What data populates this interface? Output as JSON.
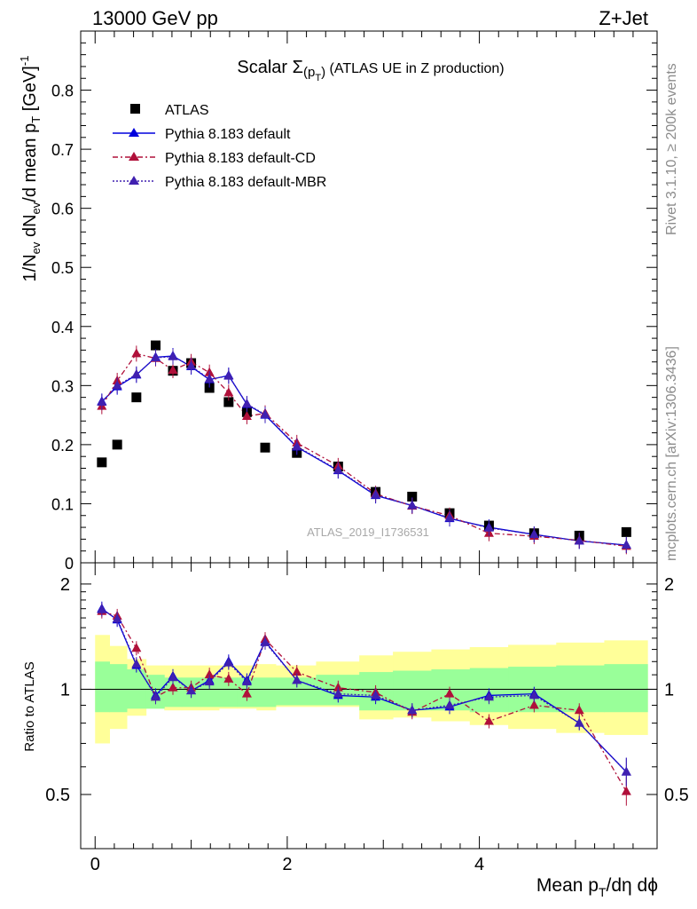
{
  "header": {
    "left": "13000 GeV pp",
    "right": "Z+Jet"
  },
  "side_labels": {
    "rivet": "Rivet 3.1.10, ≥ 200k events",
    "mcplots": "mcplots.cern.ch [arXiv:1306.3436]"
  },
  "chart_data": [
    {
      "type": "scatter",
      "panel": "main",
      "title_main": "Scalar Σ",
      "title_sub": "(p",
      "title_subsub": "T",
      "title_close": ")",
      "title_rest": " (ATLAS UE in Z production)",
      "watermark": "ATLAS_2019_I1736531",
      "ylabel": "1/N_ev dN_ev/d mean p_T [GeV]^-1",
      "ylim": [
        0,
        0.9
      ],
      "xlim": [
        -0.15,
        5.85
      ],
      "yticks": [
        "0",
        "0.1",
        "0.2",
        "0.3",
        "0.4",
        "0.5",
        "0.6",
        "0.7",
        "0.8"
      ],
      "ytick_values": [
        0,
        0.1,
        0.2,
        0.3,
        0.4,
        0.5,
        0.6,
        0.7,
        0.8
      ],
      "x": [
        0.07,
        0.23,
        0.43,
        0.63,
        0.81,
        1.0,
        1.19,
        1.39,
        1.58,
        1.77,
        2.1,
        2.53,
        2.92,
        3.3,
        3.69,
        4.1,
        4.57,
        5.04,
        5.53
      ],
      "legend": [
        "ATLAS",
        "Pythia 8.183 default",
        "Pythia 8.183 default-CD",
        "Pythia 8.183 default-MBR"
      ],
      "series": [
        {
          "name": "ATLAS",
          "color": "#000000",
          "marker": "square",
          "values": [
            0.17,
            0.2,
            0.28,
            0.368,
            0.325,
            0.338,
            0.296,
            0.272,
            0.255,
            0.195,
            0.186,
            0.163,
            0.12,
            0.112,
            0.084,
            0.063,
            0.05,
            0.046,
            0.052
          ]
        },
        {
          "name": "Pythia 8.183 default",
          "color": "#0000dd",
          "marker": "triangle",
          "dash": "",
          "values": [
            0.273,
            0.298,
            0.318,
            0.348,
            0.35,
            0.332,
            0.31,
            0.317,
            0.268,
            0.25,
            0.196,
            0.156,
            0.114,
            0.097,
            0.075,
            0.06,
            0.048,
            0.037,
            0.03
          ]
        },
        {
          "name": "Pythia 8.183 default-CD",
          "color": "#b0103a",
          "marker": "triangle",
          "dash": "6,3,2,3",
          "values": [
            0.265,
            0.308,
            0.354,
            0.346,
            0.326,
            0.34,
            0.322,
            0.288,
            0.248,
            0.253,
            0.203,
            0.164,
            0.117,
            0.096,
            0.08,
            0.05,
            0.045,
            0.038,
            0.028
          ]
        },
        {
          "name": "Pythia 8.183 default-MBR",
          "color": "#4020b0",
          "marker": "triangle",
          "dash": "2,2",
          "values": [
            0.272,
            0.3,
            0.319,
            0.347,
            0.349,
            0.333,
            0.311,
            0.316,
            0.269,
            0.251,
            0.197,
            0.157,
            0.115,
            0.097,
            0.076,
            0.059,
            0.048,
            0.037,
            0.03
          ]
        }
      ]
    },
    {
      "type": "line",
      "panel": "ratio",
      "ylabel": "Ratio to ATLAS",
      "ylim": [
        0.35,
        2.3
      ],
      "xlim": [
        -0.15,
        5.85
      ],
      "yticks": [
        "0.5",
        "1",
        "2"
      ],
      "ytick_values": [
        0.5,
        1,
        2
      ],
      "xticks": [
        "0",
        "2",
        "4"
      ],
      "xtick_values": [
        0,
        2,
        4
      ],
      "xlabel_main": "Mean p",
      "xlabel_sub": "T",
      "xlabel_rest": "/dη dϕ",
      "x": [
        0.07,
        0.23,
        0.43,
        0.63,
        0.81,
        1.0,
        1.19,
        1.39,
        1.58,
        1.77,
        2.1,
        2.53,
        2.92,
        3.3,
        3.69,
        4.1,
        4.57,
        5.04,
        5.53
      ],
      "bin_edges": [
        0,
        0.15,
        0.33,
        0.53,
        0.72,
        0.9,
        1.1,
        1.29,
        1.48,
        1.68,
        1.88,
        2.3,
        2.75,
        3.1,
        3.5,
        3.9,
        4.3,
        4.8,
        5.3,
        5.75
      ],
      "band_stat": [
        [
          0.86,
          1.2
        ],
        [
          0.86,
          1.18
        ],
        [
          0.88,
          1.14
        ],
        [
          0.88,
          1.1
        ],
        [
          0.89,
          1.08
        ],
        [
          0.89,
          1.08
        ],
        [
          0.89,
          1.08
        ],
        [
          0.89,
          1.08
        ],
        [
          0.89,
          1.08
        ],
        [
          0.89,
          1.08
        ],
        [
          0.9,
          1.08
        ],
        [
          0.9,
          1.1
        ],
        [
          0.87,
          1.12
        ],
        [
          0.87,
          1.13
        ],
        [
          0.87,
          1.14
        ],
        [
          0.86,
          1.15
        ],
        [
          0.86,
          1.16
        ],
        [
          0.86,
          1.17
        ],
        [
          0.86,
          1.18
        ]
      ],
      "band_syst": [
        [
          0.7,
          1.43
        ],
        [
          0.77,
          1.33
        ],
        [
          0.84,
          1.22
        ],
        [
          0.88,
          1.17
        ],
        [
          0.87,
          1.17
        ],
        [
          0.87,
          1.17
        ],
        [
          0.87,
          1.17
        ],
        [
          0.88,
          1.17
        ],
        [
          0.88,
          1.17
        ],
        [
          0.87,
          1.18
        ],
        [
          0.89,
          1.17
        ],
        [
          0.89,
          1.2
        ],
        [
          0.82,
          1.25
        ],
        [
          0.83,
          1.28
        ],
        [
          0.81,
          1.3
        ],
        [
          0.79,
          1.32
        ],
        [
          0.77,
          1.34
        ],
        [
          0.75,
          1.36
        ],
        [
          0.74,
          1.38
        ]
      ],
      "series": [
        {
          "name": "Pythia 8.183 default",
          "color": "#0000dd",
          "dash": "",
          "values": [
            1.7,
            1.58,
            1.17,
            0.96,
            1.09,
            0.99,
            1.06,
            1.2,
            1.06,
            1.37,
            1.06,
            0.96,
            0.95,
            0.87,
            0.89,
            0.96,
            0.97,
            0.8,
            0.58
          ]
        },
        {
          "name": "Pythia 8.183 default-CD",
          "color": "#b0103a",
          "dash": "6,3,2,3",
          "values": [
            1.67,
            1.62,
            1.31,
            0.95,
            1.01,
            1.01,
            1.1,
            1.07,
            0.97,
            1.39,
            1.12,
            1.01,
            0.98,
            0.86,
            0.97,
            0.81,
            0.9,
            0.87,
            0.51
          ]
        },
        {
          "name": "Pythia 8.183 default-MBR",
          "color": "#4020b0",
          "dash": "2,2",
          "values": [
            1.69,
            1.59,
            1.18,
            0.95,
            1.08,
            0.99,
            1.05,
            1.19,
            1.05,
            1.36,
            1.06,
            0.97,
            0.96,
            0.87,
            0.9,
            0.95,
            0.96,
            0.8,
            0.58
          ]
        }
      ]
    }
  ]
}
